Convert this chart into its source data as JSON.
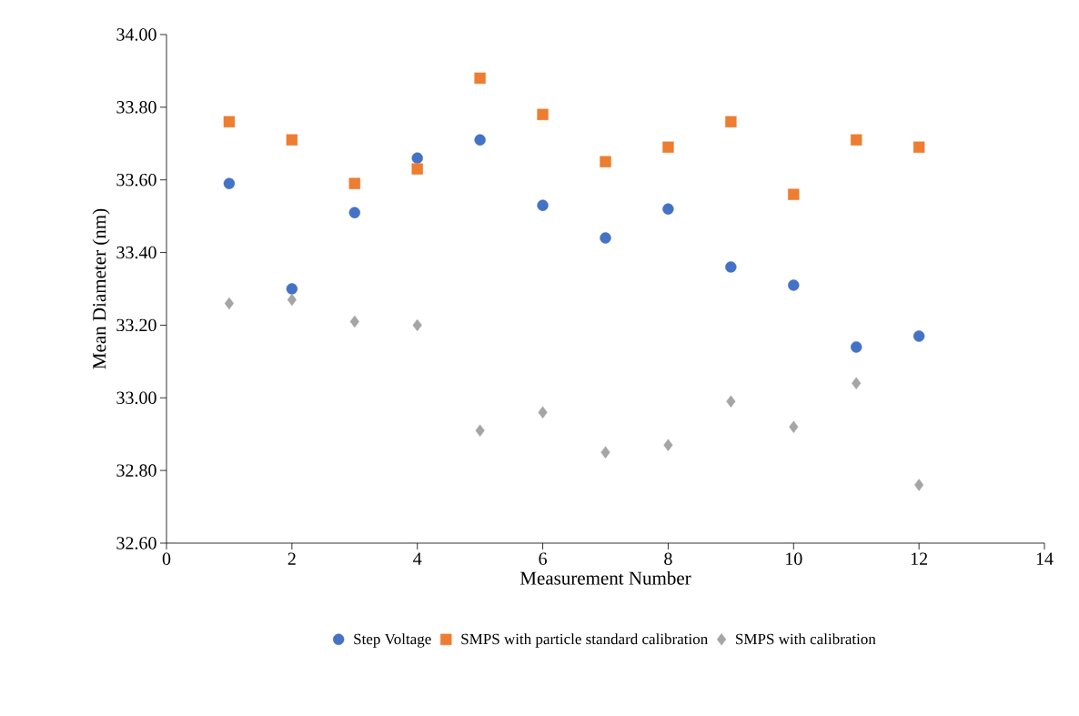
{
  "chart_data": {
    "type": "scatter",
    "xlabel": "Measurement Number",
    "ylabel": "Mean Diameter (nm)",
    "x": [
      1,
      2,
      3,
      4,
      5,
      6,
      7,
      8,
      9,
      10,
      11,
      12
    ],
    "series": [
      {
        "name": "Step Voltage",
        "color": "#4472c4",
        "marker": "circle",
        "values": [
          33.59,
          33.3,
          33.51,
          33.66,
          33.71,
          33.53,
          33.44,
          33.52,
          33.36,
          33.31,
          33.14,
          33.17
        ]
      },
      {
        "name": "SMPS with particle standard calibration",
        "color": "#ed7d31",
        "marker": "square",
        "values": [
          33.76,
          33.71,
          33.59,
          33.63,
          33.88,
          33.78,
          33.65,
          33.69,
          33.76,
          33.56,
          33.71,
          33.69
        ]
      },
      {
        "name": "SMPS with calibration",
        "color": "#a5a5a5",
        "marker": "diamond",
        "values": [
          33.26,
          33.27,
          33.21,
          33.2,
          32.91,
          32.96,
          32.85,
          32.87,
          32.99,
          32.92,
          33.04,
          32.76
        ]
      }
    ],
    "xlim": [
      0,
      14
    ],
    "xticks": [
      0,
      2,
      4,
      6,
      8,
      10,
      12,
      14
    ],
    "ylim": [
      32.6,
      34.0
    ],
    "yticks": [
      {
        "value": 32.6,
        "label": "32.60"
      },
      {
        "value": 32.8,
        "label": "32.80"
      },
      {
        "value": 33.0,
        "label": "33.00"
      },
      {
        "value": 33.2,
        "label": "33.20"
      },
      {
        "value": 33.4,
        "label": "33.40"
      },
      {
        "value": 33.6,
        "label": "33.60"
      },
      {
        "value": 33.8,
        "label": "33.80"
      },
      {
        "value": 34.0,
        "label": "34.00"
      }
    ],
    "grid": false,
    "legend": "bottom"
  }
}
